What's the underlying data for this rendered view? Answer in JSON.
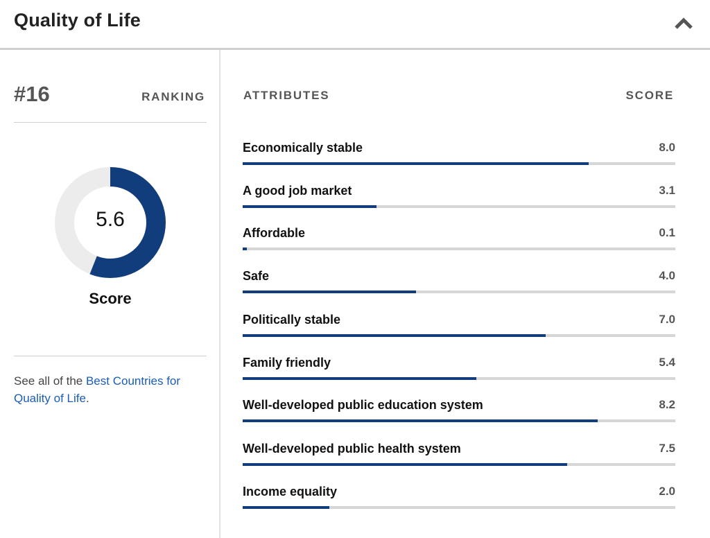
{
  "header": {
    "title": "Quality of Life",
    "collapse_icon": "chevron-up-icon"
  },
  "ranking": {
    "rank": "#16",
    "label": "RANKING"
  },
  "score": {
    "value": "5.6",
    "fraction": 0.56,
    "label": "Score"
  },
  "see_all": {
    "prefix": "See all of the ",
    "link_text": "Best Countries for Quality of Life",
    "suffix": "."
  },
  "attributes": {
    "header": "ATTRIBUTES",
    "score_header": "SCORE",
    "items": [
      {
        "name": "Economically stable",
        "score": "8.0",
        "fraction": 0.8
      },
      {
        "name": "A good job market",
        "score": "3.1",
        "fraction": 0.31
      },
      {
        "name": "Affordable",
        "score": "0.1",
        "fraction": 0.01
      },
      {
        "name": "Safe",
        "score": "4.0",
        "fraction": 0.4
      },
      {
        "name": "Politically stable",
        "score": "7.0",
        "fraction": 0.7
      },
      {
        "name": "Family friendly",
        "score": "5.4",
        "fraction": 0.54
      },
      {
        "name": "Well-developed public education system",
        "score": "8.2",
        "fraction": 0.82
      },
      {
        "name": "Well-developed public health system",
        "score": "7.5",
        "fraction": 0.75
      },
      {
        "name": "Income equality",
        "score": "2.0",
        "fraction": 0.2
      }
    ]
  },
  "colors": {
    "accent": "#123d7c",
    "track": "#d6d6d6",
    "donut_track": "#ececec",
    "link": "#1a5cb8"
  }
}
